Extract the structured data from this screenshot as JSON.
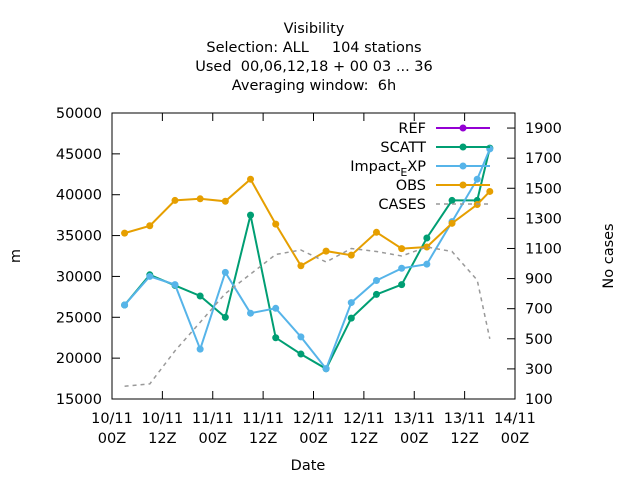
{
  "chart_data": {
    "type": "line",
    "title_lines": [
      "Visibility",
      "Selection: ALL     104 stations",
      "Used  00,06,12,18 + 00 03 ... 36",
      "Averaging window:  6h"
    ],
    "xlabel": "Date",
    "ylabel": "m",
    "y2label": "No cases",
    "xlim": [
      0,
      96
    ],
    "ylim": [
      15000,
      50000
    ],
    "y2lim": [
      100,
      2000
    ],
    "x_ticks": [
      {
        "x": 0,
        "l1": "10/11",
        "l2": "00Z"
      },
      {
        "x": 12,
        "l1": "10/11",
        "l2": "12Z"
      },
      {
        "x": 24,
        "l1": "11/11",
        "l2": "00Z"
      },
      {
        "x": 36,
        "l1": "11/11",
        "l2": "12Z"
      },
      {
        "x": 48,
        "l1": "12/11",
        "l2": "00Z"
      },
      {
        "x": 60,
        "l1": "12/11",
        "l2": "12Z"
      },
      {
        "x": 72,
        "l1": "13/11",
        "l2": "00Z"
      },
      {
        "x": 84,
        "l1": "13/11",
        "l2": "12Z"
      },
      {
        "x": 96,
        "l1": "14/11",
        "l2": "00Z"
      }
    ],
    "y_ticks": [
      15000,
      20000,
      25000,
      30000,
      35000,
      40000,
      45000,
      50000
    ],
    "y2_ticks": [
      100,
      300,
      500,
      700,
      900,
      1100,
      1300,
      1500,
      1700,
      1900
    ],
    "grid": false,
    "legend_position": "top-right",
    "series": [
      {
        "name": "REF",
        "color": "#9400d3",
        "marker": "circle",
        "x": [],
        "y": []
      },
      {
        "name": "SCATT",
        "color": "#009e73",
        "marker": "circle",
        "x": [
          3,
          9,
          15,
          21,
          27,
          33,
          39,
          45,
          51,
          57,
          63,
          69,
          75,
          81,
          87,
          90
        ],
        "y": [
          26500,
          30200,
          28900,
          27600,
          25000,
          37500,
          22500,
          20500,
          18700,
          24900,
          27800,
          29000,
          34700,
          39300,
          39300,
          45700
        ]
      },
      {
        "name": "Impact_EXP",
        "color": "#56b4e9",
        "marker": "circle",
        "x": [
          3,
          9,
          15,
          21,
          27,
          33,
          39,
          45,
          51,
          57,
          63,
          69,
          75,
          81,
          87,
          90
        ],
        "y": [
          26500,
          30000,
          29000,
          21100,
          30500,
          25500,
          26100,
          22600,
          18700,
          26800,
          29500,
          31000,
          31500,
          36700,
          41900,
          45600
        ]
      },
      {
        "name": "OBS",
        "color": "#e69f00",
        "marker": "circle",
        "x": [
          3,
          9,
          15,
          21,
          27,
          33,
          39,
          45,
          51,
          57,
          63,
          69,
          75,
          81,
          87,
          90
        ],
        "y": [
          35300,
          36200,
          39300,
          39500,
          39200,
          41900,
          36400,
          31300,
          33100,
          32600,
          35400,
          33400,
          33600,
          36500,
          38800,
          40400
        ]
      },
      {
        "name": "CASES",
        "color": "#999999",
        "marker": "none",
        "dashed": true,
        "axis": "y2",
        "x": [
          3,
          9,
          15,
          21,
          27,
          33,
          39,
          45,
          51,
          57,
          63,
          69,
          75,
          81,
          87,
          90
        ],
        "y": [
          185,
          200,
          420,
          610,
          800,
          930,
          1060,
          1090,
          1010,
          1100,
          1080,
          1050,
          1110,
          1080,
          890,
          500
        ]
      }
    ]
  }
}
